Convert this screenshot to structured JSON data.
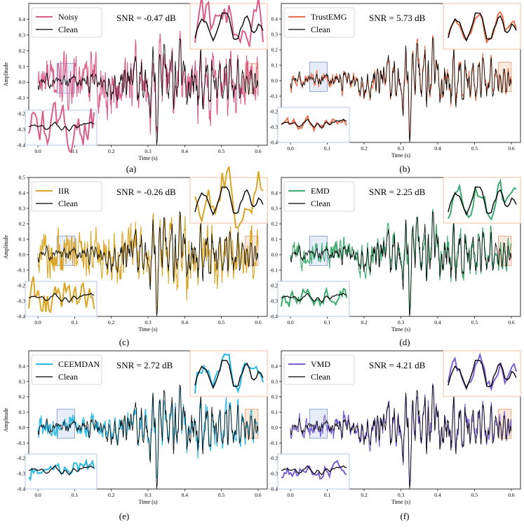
{
  "figure": {
    "panels": 6,
    "colors": {
      "clean": "#000000",
      "blue_box_fill": "#dbe4f5",
      "blue_box_stroke": "#7d97cc",
      "orange_box_fill": "#fbe0cf",
      "orange_box_stroke": "#e89a6e",
      "inset_border_orange": "#f3bfa3",
      "inset_border_blue": "#b7c7e4"
    }
  },
  "chart_data": [
    {
      "type": "line",
      "caption": "(a)",
      "snr_label": "SNR = -0.47 dB",
      "series": [
        {
          "name": "Noisy",
          "color": "#d95f8a",
          "noise_ratio": 1.05
        },
        {
          "name": "Clean",
          "color": "#000000"
        }
      ],
      "xlabel": "Time (s)",
      "ylabel": "Amplitude",
      "xlim": [
        -0.025,
        0.625
      ],
      "ylim": [
        -0.4,
        0.5
      ],
      "xticks": [
        "0.0",
        "0.1",
        "0.2",
        "0.3",
        "0.4",
        "0.5",
        "0.6"
      ],
      "yticks": [
        "-0.4",
        "-0.3",
        "-0.2",
        "-0.1",
        "0.0",
        "0.1",
        "0.2",
        "0.3",
        "0.4"
      ]
    },
    {
      "type": "line",
      "caption": "(b)",
      "snr_label": "SNR = 5.73 dB",
      "series": [
        {
          "name": "TrustEMG",
          "color": "#e8704d",
          "noise_ratio": 0.25
        },
        {
          "name": "Clean",
          "color": "#000000"
        }
      ],
      "xlabel": "Time (s)",
      "ylabel": "",
      "xlim": [
        -0.025,
        0.625
      ],
      "ylim": [
        -0.4,
        0.5
      ],
      "xticks": [
        "0.0",
        "0.1",
        "0.2",
        "0.3",
        "0.4",
        "0.5",
        "0.6"
      ],
      "yticks": [
        "-0.4",
        "-0.3",
        "-0.2",
        "-0.1",
        "0.0",
        "0.1",
        "0.2",
        "0.3",
        "0.4"
      ]
    },
    {
      "type": "line",
      "caption": "(c)",
      "snr_label": "SNR = -0.26 dB",
      "series": [
        {
          "name": "IIR",
          "color": "#d9a524",
          "noise_ratio": 1.0
        },
        {
          "name": "Clean",
          "color": "#000000"
        }
      ],
      "xlabel": "Time (s)",
      "ylabel": "Amplitude",
      "xlim": [
        -0.025,
        0.625
      ],
      "ylim": [
        -0.4,
        0.5
      ],
      "xticks": [
        "0.0",
        "0.1",
        "0.2",
        "0.3",
        "0.4",
        "0.5",
        "0.6"
      ],
      "yticks": [
        "-0.4",
        "-0.3",
        "-0.2",
        "-0.1",
        "0.0",
        "0.1",
        "0.2",
        "0.3",
        "0.4",
        "0.5"
      ]
    },
    {
      "type": "line",
      "caption": "(d)",
      "snr_label": "SNR = 2.25 dB",
      "series": [
        {
          "name": "EMD",
          "color": "#3aaa6e",
          "noise_ratio": 0.5
        },
        {
          "name": "Clean",
          "color": "#000000"
        }
      ],
      "xlabel": "Time (s)",
      "ylabel": "",
      "xlim": [
        -0.025,
        0.625
      ],
      "ylim": [
        -0.4,
        0.5
      ],
      "xticks": [
        "0.0",
        "0.1",
        "0.2",
        "0.3",
        "0.4",
        "0.5",
        "0.6"
      ],
      "yticks": [
        "-0.4",
        "-0.3",
        "-0.2",
        "-0.1",
        "0.0",
        "0.1",
        "0.2",
        "0.3",
        "0.4"
      ]
    },
    {
      "type": "line",
      "caption": "(e)",
      "snr_label": "SNR = 2.72 dB",
      "series": [
        {
          "name": "CEEMDAN",
          "color": "#29b6e0",
          "noise_ratio": 0.45
        },
        {
          "name": "Clean",
          "color": "#000000"
        }
      ],
      "xlabel": "Time (s)",
      "ylabel": "Amplitude",
      "xlim": [
        -0.025,
        0.625
      ],
      "ylim": [
        -0.4,
        0.5
      ],
      "xticks": [
        "0.0",
        "0.1",
        "0.2",
        "0.3",
        "0.4",
        "0.5",
        "0.6"
      ],
      "yticks": [
        "-0.4",
        "-0.3",
        "-0.2",
        "-0.1",
        "0.0",
        "0.1",
        "0.2",
        "0.3",
        "0.4"
      ]
    },
    {
      "type": "line",
      "caption": "(f)",
      "snr_label": "SNR = 4.21 dB",
      "series": [
        {
          "name": "VMD",
          "color": "#7b5fd0",
          "noise_ratio": 0.35
        },
        {
          "name": "Clean",
          "color": "#000000"
        }
      ],
      "xlabel": "Time (s)",
      "ylabel": "",
      "xlim": [
        -0.025,
        0.625
      ],
      "ylim": [
        -0.4,
        0.5
      ],
      "xticks": [
        "0.0",
        "0.1",
        "0.2",
        "0.3",
        "0.4",
        "0.5",
        "0.6"
      ],
      "yticks": [
        "-0.4",
        "-0.3",
        "-0.2",
        "-0.1",
        "0.0",
        "0.1",
        "0.2",
        "0.3",
        "0.4"
      ]
    }
  ]
}
